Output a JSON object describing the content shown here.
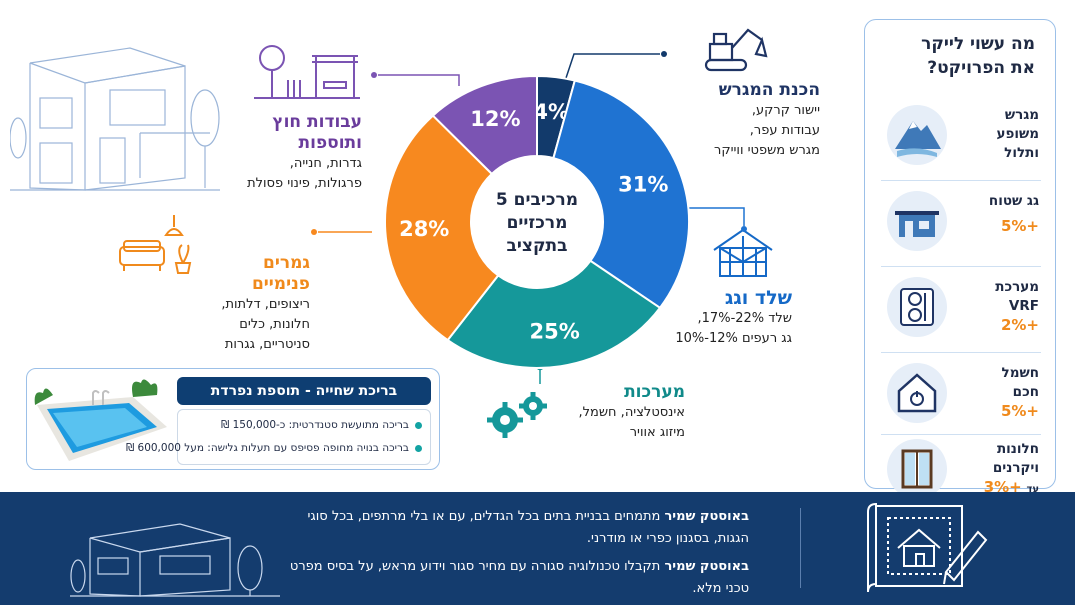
{
  "chart_data": {
    "type": "pie",
    "center_label": [
      "5 מרכיבים",
      "מרכזיים",
      "בתקציב"
    ],
    "slices": [
      {
        "label": "הכנת המגרש",
        "value": 4,
        "display": "4%",
        "color": "#123a6b"
      },
      {
        "label": "שלד וגג",
        "value": 31,
        "display": "31%",
        "color": "#1f73d2"
      },
      {
        "label": "מערכות",
        "value": 25,
        "display": "25%",
        "color": "#15989a"
      },
      {
        "label": "גמרים פנימיים",
        "value": 28,
        "display": "28%",
        "color": "#f7891f"
      },
      {
        "label": "עבודות חוץ ותוספות",
        "value": 12,
        "display": "12%",
        "color": "#7b54b3"
      }
    ]
  },
  "categories": {
    "site": {
      "title": "הכנת המגרש",
      "lines": [
        "יישור קרקע,",
        "עבודות עפר,",
        "מגרש משפטי ווייקר"
      ]
    },
    "outdoor": {
      "title_lines": [
        "עבודות חוץ",
        "ותוספות"
      ],
      "lines": [
        "גדרות, חנייה,",
        "פרגולות, פינוי פסולת"
      ]
    },
    "interior": {
      "title": "גמרים פנימיים",
      "lines": [
        "ריצופים, דלתות,",
        "חלונות, כלים",
        "סניטריים, גגרות"
      ]
    },
    "frame": {
      "title": "שלד וגג",
      "lines": [
        "שלד 22%-17%,",
        "גג רעפים 12%-10%"
      ]
    },
    "systems": {
      "title": "מערכות",
      "lines": [
        "אינסטלציה, חשמל,",
        "מיזוג אוויר"
      ]
    }
  },
  "sidebar": {
    "title": [
      "מה עשוי לייקר",
      "את הפרויקט?"
    ],
    "items": [
      {
        "label": [
          "מגרש",
          "משופע",
          "ותלול"
        ],
        "pct": "",
        "icon": "mountain-icon"
      },
      {
        "label": [
          "גג שטוח"
        ],
        "pct": "+5%",
        "icon": "flat-roof-house-icon"
      },
      {
        "label": [
          "מערכת",
          "VRF"
        ],
        "pct": "+2%",
        "icon": "vrf-unit-icon"
      },
      {
        "label": [
          "חשמל",
          "חכם"
        ],
        "pct": "+5%",
        "icon": "smart-home-icon"
      },
      {
        "label": [
          "חלונות",
          "ויקרנים"
        ],
        "pct": "+3%",
        "pct_prefix": "עד",
        "icon": "window-icon"
      }
    ]
  },
  "pool": {
    "title": "בריכת שחייה - תוספת נפרדת",
    "items": [
      "בריכה מתועשת סטנדרטית: כ-150,000 ₪",
      "בריכה בנויה מחופה פסיפס עם תעלות גלישה: מעל 600,000 ₪"
    ]
  },
  "banner": {
    "p1_brand": "באוסטק שמיר",
    "p1_rest": " מתמחים בבניית בתים בכל הגדלים, עם או בלי מרתפים, בכל סוגי הגגות, בסגנון כפרי או מודרני.",
    "p2_brand": "באוסטק שמיר",
    "p2_rest": " תקבלו טכנולוגיה סגורה עם מחיר סגור וידוע מראש, על בסיס מפרט טכני מלא."
  }
}
